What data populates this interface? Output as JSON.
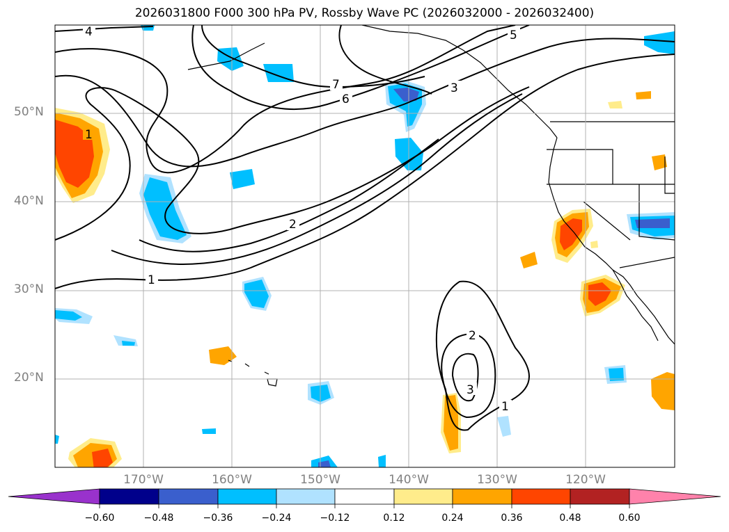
{
  "title": "2026031800 F000 300 hPa PV, Rossby Wave PC (2026032000 - 2026032400)",
  "lat_labels": [
    "50°N",
    "40°N",
    "30°N",
    "20°N"
  ],
  "lon_labels": [
    "170°W",
    "160°W",
    "150°W",
    "140°W",
    "130°W",
    "120°W"
  ],
  "contour_labels": [
    "4",
    "5",
    "7",
    "6",
    "3",
    "1",
    "2",
    "1",
    "2",
    "3",
    "1"
  ],
  "colorbar": {
    "ticks": [
      "−0.60",
      "−0.48",
      "−0.36",
      "−0.24",
      "−0.12",
      "0.12",
      "0.24",
      "0.36",
      "0.48",
      "0.60"
    ],
    "colors": [
      "#9932cc",
      "#00008b",
      "#3a5fcd",
      "#00bfff",
      "#b0e2ff",
      "#ffffff",
      "#ffec8b",
      "#ffa500",
      "#ff4500",
      "#b22222",
      "#ff82ab"
    ]
  },
  "colors": {
    "pos_light": "#ffec8b",
    "pos_mid": "#ffa500",
    "pos_strong": "#ff4500",
    "neg_light": "#b0e2ff",
    "neg_mid": "#00bfff",
    "neg_strong": "#3a5fcd"
  }
}
